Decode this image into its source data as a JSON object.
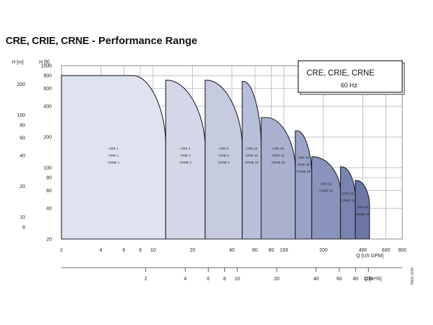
{
  "title": "CRE, CRIE, CRNE",
  "title_suffix": "Performance Range",
  "legend_box": {
    "line1": "CRE, CRIE, CRNE",
    "line2": "60 Hz"
  },
  "footnote": "TM01 0194",
  "chart_data": {
    "type": "area",
    "title": "CRE, CRIE, CRNE - Performance Range",
    "frequency": "60 Hz",
    "xlabel": "Q [US GPM]",
    "x2label": "Q [m³/h]",
    "ylabel_m": "H [m]",
    "ylabel_ft": "H [ft]",
    "x_scale": "log",
    "y_scale": "log",
    "xlim": [
      2,
      800
    ],
    "ylim_ft": [
      20,
      1000
    ],
    "x_ticks": [
      2,
      4,
      6,
      8,
      10,
      20,
      40,
      60,
      80,
      100,
      200,
      400,
      600,
      800
    ],
    "x_tick_labels": [
      "2",
      "4",
      "6",
      "8",
      "10",
      "20",
      "40",
      "60",
      "80",
      "100",
      "200",
      "400",
      "600",
      "800"
    ],
    "y_ft_ticks": [
      20,
      40,
      60,
      80,
      100,
      200,
      400,
      600,
      800,
      1000
    ],
    "y_ft_tick_labels": [
      "20",
      "40",
      "60",
      "80",
      "100",
      "200",
      "400",
      "600",
      "800",
      "1000"
    ],
    "y_m_ticks": [
      8,
      10,
      20,
      40,
      60,
      80,
      100,
      200
    ],
    "y_m_tick_labels": [
      "8",
      "10",
      "20",
      "40",
      "60",
      "80",
      "100",
      "200"
    ],
    "x2_ticks": [
      2,
      4,
      6,
      8,
      10,
      20,
      40,
      60,
      80,
      100
    ],
    "x2_tick_labels": [
      "2",
      "4",
      "6",
      "8",
      "10",
      "20",
      "40",
      "60",
      "80",
      "100"
    ],
    "grid": true,
    "series": [
      {
        "name": "CRE 1 CRIE 1 CRNE 1",
        "labels": [
          "CRE 1",
          "CRIE 1",
          "CRNE 1"
        ],
        "q_min": 2,
        "q_max": 12.5,
        "h_max_ft": 800,
        "h_min_ft": 20,
        "knee_q": 7.0,
        "color": "#dfe2ef"
      },
      {
        "name": "CRE 3 CRIE 3 CRNE 3",
        "labels": [
          "CRE 3",
          "CRIE 3",
          "CRNE 3"
        ],
        "q_min": 12.5,
        "q_max": 25,
        "h_max_ft": 720,
        "h_min_ft": 20,
        "knee_q": 12.0,
        "color": "#d3d7e7"
      },
      {
        "name": "CRE 5 CRIE 5 CRNE 5",
        "labels": [
          "CRE 5",
          "CRIE 5",
          "CRNE 5"
        ],
        "q_min": 25,
        "q_max": 48,
        "h_max_ft": 720,
        "h_min_ft": 20,
        "knee_q": 22.0,
        "color": "#c5cadf"
      },
      {
        "name": "CRE 10 CRIE 10 CRNE 10",
        "labels": [
          "CRE 10",
          "CRIE 10",
          "CRNE 10"
        ],
        "q_min": 48,
        "q_max": 67,
        "h_max_ft": 700,
        "h_min_ft": 20,
        "knee_q": 36.0,
        "color": "#b8bfd8"
      },
      {
        "name": "CRE 15 CRIE 15 CRNE 15",
        "labels": [
          "CRE 15",
          "CRIE 15",
          "CRNE 15"
        ],
        "q_min": 67,
        "q_max": 122,
        "h_max_ft": 310,
        "h_min_ft": 20,
        "knee_q": 74.0,
        "color": "#a9b1cf"
      },
      {
        "name": "CRE 20 CRIE 20 CRNE 20",
        "labels": [
          "CRE 20",
          "CRIE 20",
          "CRNE 20"
        ],
        "q_min": 122,
        "q_max": 163,
        "h_max_ft": 230,
        "h_min_ft": 20,
        "knee_q": 126.0,
        "color": "#9aa3c6"
      },
      {
        "name": "CRE 32 CRNE 32",
        "labels": [
          "CRE 32",
          "CRNE 32"
        ],
        "q_min": 163,
        "q_max": 270,
        "h_max_ft": 128,
        "h_min_ft": 20,
        "knee_q": 158.0,
        "color": "#8993bb"
      },
      {
        "name": "CRE 45 CRNE 45",
        "labels": [
          "CRE 45",
          "CRNE 45"
        ],
        "q_min": 270,
        "q_max": 350,
        "h_max_ft": 102,
        "h_min_ft": 20,
        "knee_q": 218.0,
        "color": "#7a84b0"
      },
      {
        "name": "CRE 64 CRNE 64",
        "labels": [
          "CRE 64",
          "CRNE 64"
        ],
        "q_min": 350,
        "q_max": 450,
        "h_max_ft": 75,
        "h_min_ft": 20,
        "knee_q": 300.0,
        "color": "#6c77a6"
      }
    ]
  }
}
